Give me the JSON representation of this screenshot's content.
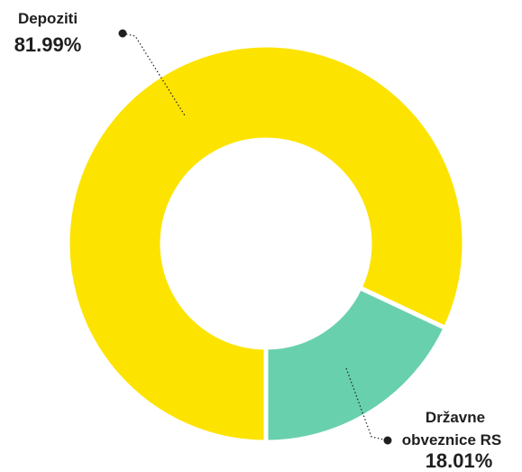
{
  "chart_data": {
    "type": "pie",
    "variant": "donut",
    "slices": [
      {
        "label_lines": [
          "Depoziti"
        ],
        "value_label": "81.99%",
        "value": 81.99,
        "color": "#fde300"
      },
      {
        "label_lines": [
          "Državne",
          "obveznice RS"
        ],
        "value_label": "18.01%",
        "value": 18.01,
        "color": "#68d0ad"
      }
    ],
    "legend": "none"
  }
}
